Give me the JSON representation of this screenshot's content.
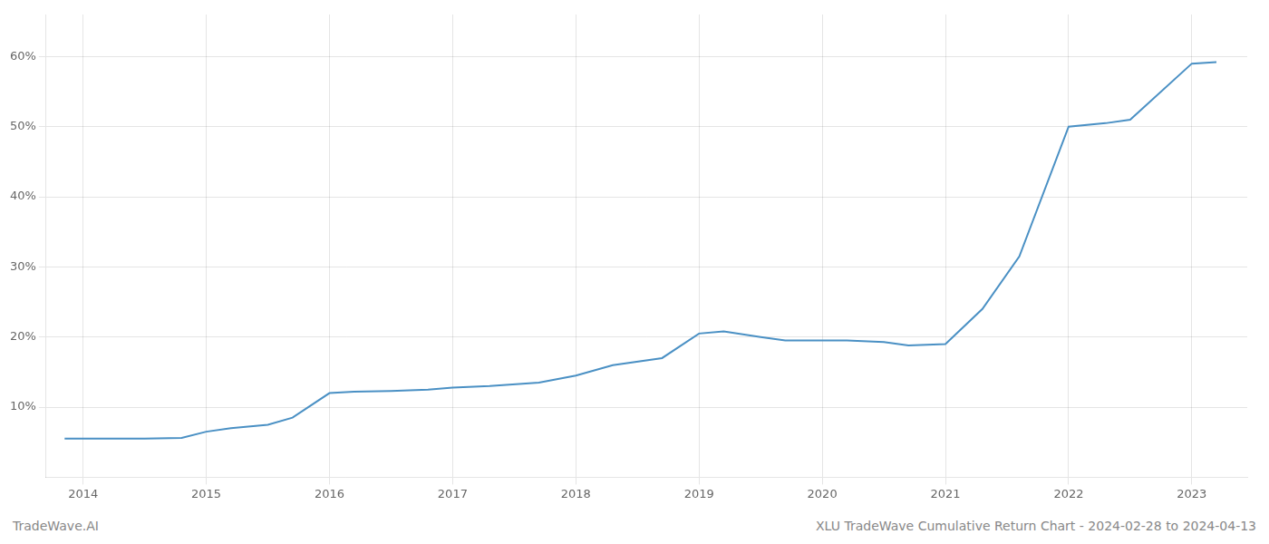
{
  "chart_data": {
    "type": "line",
    "title": "XLU TradeWave Cumulative Return Chart - 2024-02-28 to 2024-04-13",
    "annotations": [
      "TradeWave.AI"
    ],
    "x": [
      2013.85,
      2014.0,
      2014.2,
      2014.5,
      2014.8,
      2015.0,
      2015.2,
      2015.5,
      2015.7,
      2016.0,
      2016.2,
      2016.5,
      2016.8,
      2017.0,
      2017.3,
      2017.7,
      2018.0,
      2018.3,
      2018.7,
      2019.0,
      2019.2,
      2019.5,
      2019.7,
      2020.0,
      2020.2,
      2020.5,
      2020.7,
      2021.0,
      2021.3,
      2021.6,
      2022.0,
      2022.3,
      2022.5,
      2023.0,
      2023.2
    ],
    "values": [
      5.5,
      5.5,
      5.5,
      5.5,
      5.6,
      6.5,
      7.0,
      7.5,
      8.5,
      12.0,
      12.2,
      12.3,
      12.5,
      12.8,
      13.0,
      13.5,
      14.5,
      16.0,
      17.0,
      20.5,
      20.8,
      20.0,
      19.5,
      19.5,
      19.5,
      19.3,
      18.8,
      19.0,
      24.0,
      31.5,
      50.0,
      50.5,
      51.0,
      59.0,
      59.2
    ],
    "color": "#4a90c4",
    "xlim": [
      2013.7,
      2023.45
    ],
    "xticks": [
      2014,
      2015,
      2016,
      2017,
      2018,
      2019,
      2020,
      2021,
      2022,
      2023
    ],
    "ylim": [
      0,
      66
    ],
    "yticks": [
      {
        "value": 10,
        "label": "10%"
      },
      {
        "value": 20,
        "label": "20%"
      },
      {
        "value": 30,
        "label": "30%"
      },
      {
        "value": 40,
        "label": "40%"
      },
      {
        "value": 50,
        "label": "50%"
      },
      {
        "value": 60,
        "label": "60%"
      }
    ],
    "grid": true
  }
}
